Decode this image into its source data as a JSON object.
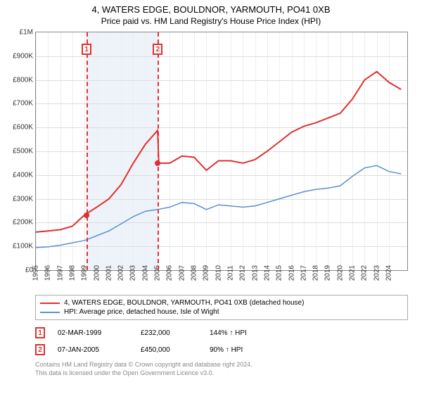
{
  "title_line1": "4, WATERS EDGE, BOULDNOR, YARMOUTH, PO41 0XB",
  "title_line2": "Price paid vs. HM Land Registry's House Price Index (HPI)",
  "chart": {
    "type": "line",
    "x_range": [
      1995,
      2025.5
    ],
    "y_range": [
      0,
      1000000
    ],
    "y_ticks": [
      0,
      100000,
      200000,
      300000,
      400000,
      500000,
      600000,
      700000,
      800000,
      900000,
      1000000
    ],
    "y_tick_labels": [
      "£0",
      "£100K",
      "£200K",
      "£300K",
      "£400K",
      "£500K",
      "£600K",
      "£700K",
      "£800K",
      "£900K",
      "£1M"
    ],
    "x_ticks": [
      1995,
      1996,
      1997,
      1998,
      1999,
      2000,
      2001,
      2002,
      2003,
      2004,
      2005,
      2006,
      2007,
      2008,
      2009,
      2010,
      2011,
      2012,
      2013,
      2014,
      2015,
      2016,
      2017,
      2018,
      2019,
      2020,
      2021,
      2022,
      2023,
      2024
    ],
    "background_color": "#ffffff",
    "grid_color": "#dddddd",
    "xgrid_color": "#eeeeee",
    "shaded_band": {
      "from_x": 1999.17,
      "to_x": 2005.02,
      "color": "#eef3fa"
    },
    "series_property": {
      "color": "#e03030",
      "width": 2,
      "points": [
        [
          1995,
          160000
        ],
        [
          1996,
          165000
        ],
        [
          1997,
          170000
        ],
        [
          1998,
          185000
        ],
        [
          1999,
          232000
        ],
        [
          2000,
          265000
        ],
        [
          2001,
          300000
        ],
        [
          2002,
          360000
        ],
        [
          2003,
          450000
        ],
        [
          2004,
          530000
        ],
        [
          2005,
          588000
        ],
        [
          2005.1,
          450000
        ],
        [
          2006,
          450000
        ],
        [
          2007,
          480000
        ],
        [
          2008,
          475000
        ],
        [
          2009,
          420000
        ],
        [
          2010,
          460000
        ],
        [
          2011,
          460000
        ],
        [
          2012,
          450000
        ],
        [
          2013,
          465000
        ],
        [
          2014,
          500000
        ],
        [
          2015,
          540000
        ],
        [
          2016,
          580000
        ],
        [
          2017,
          605000
        ],
        [
          2018,
          620000
        ],
        [
          2019,
          640000
        ],
        [
          2020,
          660000
        ],
        [
          2021,
          720000
        ],
        [
          2022,
          800000
        ],
        [
          2023,
          835000
        ],
        [
          2024,
          790000
        ],
        [
          2025,
          760000
        ]
      ]
    },
    "series_hpi": {
      "color": "#5b8fd6",
      "width": 1.5,
      "points": [
        [
          1995,
          95000
        ],
        [
          1996,
          98000
        ],
        [
          1997,
          105000
        ],
        [
          1998,
          115000
        ],
        [
          1999,
          125000
        ],
        [
          2000,
          145000
        ],
        [
          2001,
          165000
        ],
        [
          2002,
          195000
        ],
        [
          2003,
          225000
        ],
        [
          2004,
          248000
        ],
        [
          2005,
          255000
        ],
        [
          2006,
          265000
        ],
        [
          2007,
          285000
        ],
        [
          2008,
          280000
        ],
        [
          2009,
          255000
        ],
        [
          2010,
          275000
        ],
        [
          2011,
          270000
        ],
        [
          2012,
          265000
        ],
        [
          2013,
          270000
        ],
        [
          2014,
          285000
        ],
        [
          2015,
          300000
        ],
        [
          2016,
          315000
        ],
        [
          2017,
          330000
        ],
        [
          2018,
          340000
        ],
        [
          2019,
          345000
        ],
        [
          2020,
          355000
        ],
        [
          2021,
          395000
        ],
        [
          2022,
          430000
        ],
        [
          2023,
          440000
        ],
        [
          2024,
          415000
        ],
        [
          2025,
          405000
        ]
      ]
    },
    "sale_markers": [
      {
        "n": "1",
        "x": 1999.17,
        "y": 232000
      },
      {
        "n": "2",
        "x": 2005.02,
        "y": 450000
      }
    ],
    "marker_box_y_offset": 16,
    "marker_color": "#e03030"
  },
  "legend": {
    "items": [
      {
        "color": "#e03030",
        "label": "4, WATERS EDGE, BOULDNOR, YARMOUTH, PO41 0XB (detached house)"
      },
      {
        "color": "#5b8fd6",
        "label": "HPI: Average price, detached house, Isle of Wight"
      }
    ]
  },
  "sales": [
    {
      "n": "1",
      "date": "02-MAR-1999",
      "price": "£232,000",
      "hpi": "144% ↑ HPI"
    },
    {
      "n": "2",
      "date": "07-JAN-2005",
      "price": "£450,000",
      "hpi": "90% ↑ HPI"
    }
  ],
  "footer_line1": "Contains HM Land Registry data © Crown copyright and database right 2024.",
  "footer_line2": "This data is licensed under the Open Government Licence v3.0."
}
